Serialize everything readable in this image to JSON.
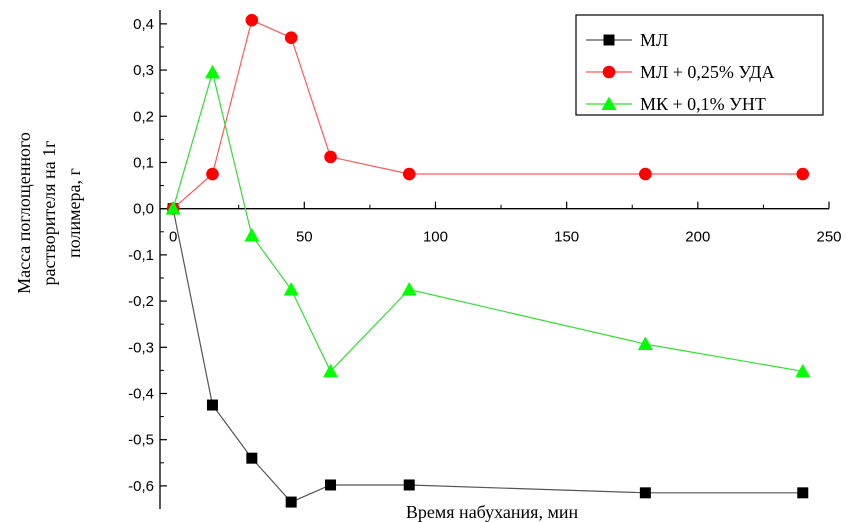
{
  "chart_data": {
    "type": "line",
    "xlabel": "Время набухания, мин",
    "ylabel_lines": [
      "Масса поглощенного",
      "растворителя на 1г",
      "полимера, г"
    ],
    "xlim": [
      -5,
      250
    ],
    "ylim": [
      -0.65,
      0.43
    ],
    "x_ticks": [
      0,
      50,
      100,
      150,
      200,
      250
    ],
    "x_tick_labels": [
      "0",
      "50",
      "100",
      "150",
      "200",
      "250"
    ],
    "y_ticks": [
      0.4,
      0.3,
      0.2,
      0.1,
      0.0,
      -0.1,
      -0.2,
      -0.3,
      -0.4,
      -0.5,
      -0.6
    ],
    "y_tick_labels": [
      "0,4",
      "0,3",
      "0,2",
      "0,1",
      "0,0",
      "-0,1",
      "-0,2",
      "-0,3",
      "-0,4",
      "-0,5",
      "-0,6"
    ],
    "grid": false,
    "legend_position": "top-right",
    "series": [
      {
        "name": "МЛ",
        "marker": "square",
        "color": "#000000",
        "line_color": "#555555",
        "x": [
          0,
          15,
          30,
          45,
          60,
          90,
          180,
          240
        ],
        "y": [
          0.0,
          -0.425,
          -0.54,
          -0.635,
          -0.598,
          -0.598,
          -0.615,
          -0.615
        ]
      },
      {
        "name": "МЛ + 0,25% УДА",
        "marker": "circle",
        "color": "#ff0000",
        "line_color": "#ff5a5a",
        "x": [
          0,
          15,
          30,
          45,
          60,
          90,
          180,
          240
        ],
        "y": [
          0.0,
          0.075,
          0.408,
          0.37,
          0.112,
          0.075,
          0.075,
          0.075
        ]
      },
      {
        "name": "МК + 0,1% УНТ",
        "marker": "triangle",
        "color": "#00ff00",
        "line_color": "#33dd33",
        "x": [
          0,
          15,
          30,
          45,
          60,
          90,
          180,
          240
        ],
        "y": [
          0.0,
          0.295,
          -0.058,
          -0.175,
          -0.352,
          -0.175,
          -0.293,
          -0.352
        ]
      }
    ]
  }
}
